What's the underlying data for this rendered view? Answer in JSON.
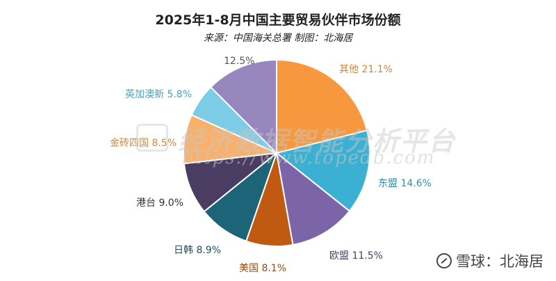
{
  "chart_data": {
    "type": "pie",
    "title": "2025年1-8月中国主要贸易伙伴市场份额",
    "subtitle": "来源：中国海关总署  制图：北海居",
    "slices": [
      {
        "label": "其他",
        "value": 21.1,
        "value_text": "21.1%",
        "color": "#F7983F",
        "label_color": "#C88A3A"
      },
      {
        "label": "东盟",
        "value": 14.6,
        "value_text": "14.6%",
        "color": "#3BB0D3",
        "label_color": "#2C8FB0"
      },
      {
        "label": "欧盟",
        "value": 11.5,
        "value_text": "11.5%",
        "color": "#7C64A8",
        "label_color": "#4A3F66"
      },
      {
        "label": "美国",
        "value": 8.1,
        "value_text": "8.1%",
        "color": "#C05A13",
        "label_color": "#9A4A12"
      },
      {
        "label": "日韩",
        "value": 8.9,
        "value_text": "8.9%",
        "color": "#1C6478",
        "label_color": "#1C4E5E"
      },
      {
        "label": "港台",
        "value": 9.0,
        "value_text": "9.0%",
        "color": "#4B3C62",
        "label_color": "#333333"
      },
      {
        "label": "金砖四国",
        "value": 8.5,
        "value_text": "8.5%",
        "color": "#F8B06A",
        "label_color": "#C88A3A"
      },
      {
        "label": "英加澳新",
        "value": 5.8,
        "value_text": "5.8%",
        "color": "#7CCCE6",
        "label_color": "#4AA0C0"
      },
      {
        "label": "",
        "value": 12.5,
        "value_text": "12.5%",
        "color": "#9886BE",
        "label_color": "#555555"
      }
    ]
  },
  "watermark": {
    "main": "经济数据智能分析平台",
    "url": "https://www.topedb.com"
  },
  "footer": {
    "brand": "雪球：北海居"
  }
}
